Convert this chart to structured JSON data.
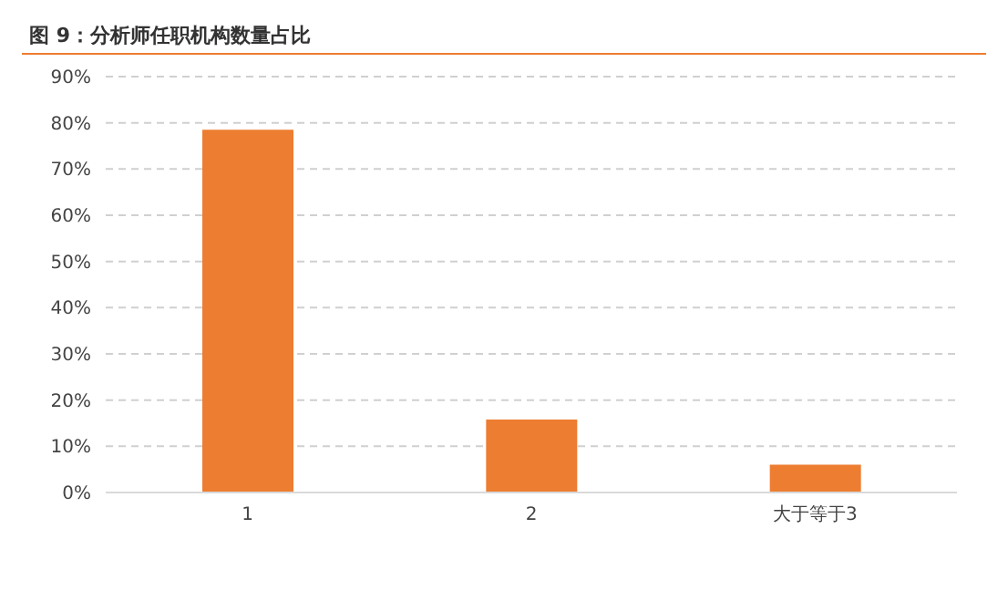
{
  "chart_data": {
    "type": "bar",
    "title": "图 9：分析师任职机构数量占比",
    "categories": [
      "1",
      "2",
      "大于等于3"
    ],
    "values": [
      78.5,
      15.8,
      6.0
    ],
    "color": "#ed7d31",
    "ylim": [
      0,
      90
    ],
    "yticks": [
      {
        "value": 0,
        "label": "0%"
      },
      {
        "value": 10,
        "label": "10%"
      },
      {
        "value": 20,
        "label": "20%"
      },
      {
        "value": 30,
        "label": "30%"
      },
      {
        "value": 40,
        "label": "40%"
      },
      {
        "value": 50,
        "label": "50%"
      },
      {
        "value": 60,
        "label": "60%"
      },
      {
        "value": 70,
        "label": "70%"
      },
      {
        "value": 80,
        "label": "80%"
      },
      {
        "value": 90,
        "label": "90%"
      }
    ],
    "grid": "y"
  }
}
